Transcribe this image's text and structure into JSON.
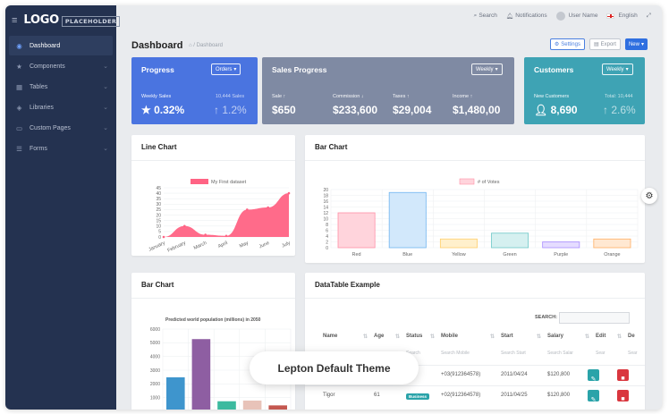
{
  "logo": {
    "text": "LOGO",
    "placeholder": "PLACEHOLDER"
  },
  "sidebar": {
    "items": [
      {
        "label": "Dashboard",
        "icon": "dashboard-icon",
        "glyph": "◉",
        "active": true,
        "chevron": false
      },
      {
        "label": "Components",
        "icon": "star-icon",
        "glyph": "★",
        "active": false,
        "chevron": true
      },
      {
        "label": "Tables",
        "icon": "table-icon",
        "glyph": "▦",
        "active": false,
        "chevron": true
      },
      {
        "label": "Libraries",
        "icon": "cube-icon",
        "glyph": "◈",
        "active": false,
        "chevron": true
      },
      {
        "label": "Custom Pages",
        "icon": "folder-icon",
        "glyph": "▭",
        "active": false,
        "chevron": true
      },
      {
        "label": "Forms",
        "icon": "list-icon",
        "glyph": "☰",
        "active": false,
        "chevron": true
      }
    ]
  },
  "topbar": {
    "search": "Search",
    "notifications": "Notifications",
    "user": "User Name",
    "language": "English"
  },
  "header": {
    "title": "Dashboard",
    "breadcrumb": "/ Dashboard",
    "settings": "Settings",
    "export": "Export",
    "new": "New"
  },
  "stats": {
    "progress": {
      "title": "Progress",
      "dropdown": "Orders",
      "label": "Weekly Sales",
      "value": "0.32%",
      "sub_label": "10,444 Sales",
      "sub_value": "1.2%",
      "color": "#4a74e0"
    },
    "sales": {
      "title": "Sales Progress",
      "dropdown": "Weekly",
      "color": "#7f8aa3",
      "items": [
        {
          "label": "Sale",
          "value": "$650"
        },
        {
          "label": "Commission",
          "value": "$233,600"
        },
        {
          "label": "Taxes",
          "value": "$29,004"
        },
        {
          "label": "Income",
          "value": "$1,480,00"
        }
      ]
    },
    "customers": {
      "title": "Customers",
      "dropdown": "Weekly",
      "label": "New Customers",
      "value": "8,690",
      "sub_label": "Total: 10,444",
      "sub_value": "2.6%",
      "color": "#3ea3b4"
    }
  },
  "cards": {
    "line": "Line Chart",
    "bar1": "Bar Chart",
    "bar2": "Bar Chart",
    "table": "DataTable Example"
  },
  "chart_data": [
    {
      "type": "area",
      "title": "",
      "legend": "My First dataset",
      "color": "#ff6384",
      "categories": [
        "January",
        "February",
        "March",
        "April",
        "May",
        "June",
        "July"
      ],
      "values": [
        0,
        10,
        2,
        1,
        25,
        27,
        40
      ],
      "ylim": [
        0,
        45
      ],
      "ticks": [
        0,
        5,
        10,
        15,
        20,
        25,
        30,
        35,
        40,
        45
      ]
    },
    {
      "type": "bar",
      "title": "",
      "legend": "# of Votes",
      "categories": [
        "Red",
        "Blue",
        "Yellow",
        "Green",
        "Purple",
        "Orange"
      ],
      "values": [
        12,
        19,
        3,
        5,
        2,
        3
      ],
      "ylim": [
        0,
        20
      ],
      "ticks": [
        0,
        2,
        4,
        6,
        8,
        10,
        12,
        14,
        16,
        18,
        20
      ],
      "fills": [
        "#ffd4dc",
        "#d2e8fb",
        "#fff0cc",
        "#d5f0f0",
        "#e5dcff",
        "#ffe8d2"
      ],
      "strokes": [
        "#ff8fa6",
        "#6eb4f0",
        "#ffcf6b",
        "#6cc8c8",
        "#a98cff",
        "#ffae62"
      ]
    },
    {
      "type": "bar",
      "title": "Predicted world population (millions) in 2050",
      "categories": [
        "Africa",
        "Asia",
        "Europe",
        "Latin America",
        "North America"
      ],
      "values": [
        2478,
        5267,
        734,
        784,
        433
      ],
      "ylim": [
        0,
        6000
      ],
      "ticks": [
        0,
        1000,
        2000,
        3000,
        4000,
        5000,
        6000
      ],
      "colors": [
        "#3e95cd",
        "#8e5ea2",
        "#3cba9f",
        "#e8c3b9",
        "#c45850"
      ]
    }
  ],
  "datatable": {
    "search_label": "SEARCH:",
    "columns": [
      "Name",
      "Age",
      "Status",
      "Mobile",
      "Start",
      "Salary",
      "Edit",
      "De"
    ],
    "placeholders": [
      "",
      "",
      "Search",
      "Search Mobile",
      "Search Start",
      "Search Salar",
      "Sear",
      "Sear"
    ],
    "rows": [
      {
        "name": "",
        "age": "",
        "status": "",
        "mobile": "+03(912364578)",
        "start": "2011/04/24",
        "salary": "$120,800"
      },
      {
        "name": "Tigor",
        "age": "61",
        "status": "Business",
        "mobile": "+02(912364578)",
        "start": "2011/04/25",
        "salary": "$120,800"
      }
    ]
  },
  "overlay": "Lepton Default Theme"
}
